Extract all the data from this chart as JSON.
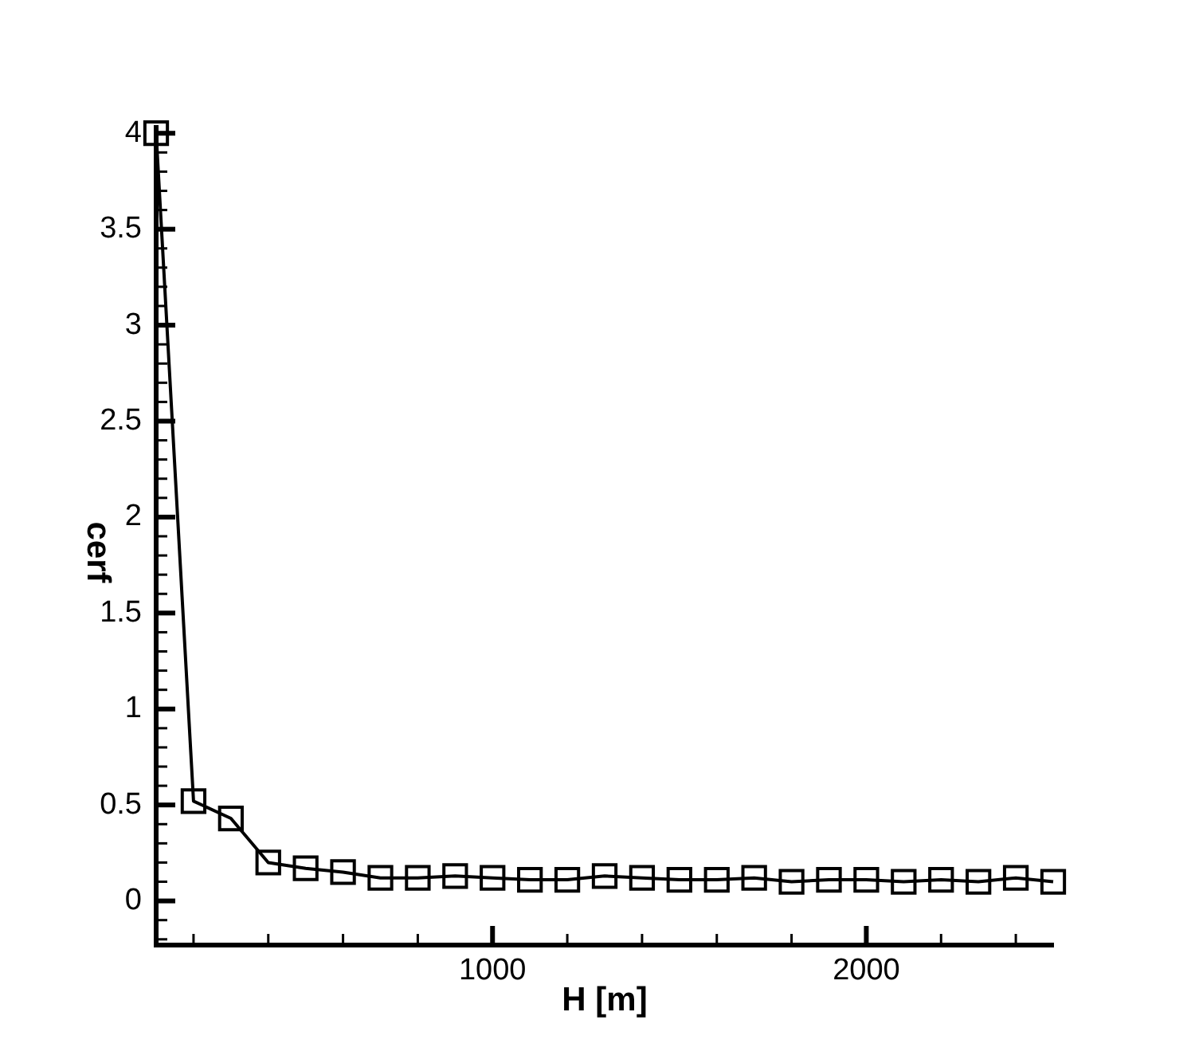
{
  "chart_data": {
    "type": "line",
    "xlabel": "H [m]",
    "ylabel": "cerf",
    "x": [
      100,
      200,
      300,
      400,
      500,
      600,
      700,
      800,
      900,
      1000,
      1100,
      1200,
      1300,
      1400,
      1500,
      1600,
      1700,
      1800,
      1900,
      2000,
      2100,
      2200,
      2300,
      2400,
      2500
    ],
    "values": [
      4.0,
      0.52,
      0.43,
      0.2,
      0.17,
      0.15,
      0.12,
      0.12,
      0.13,
      0.12,
      0.11,
      0.11,
      0.13,
      0.12,
      0.11,
      0.11,
      0.12,
      0.1,
      0.11,
      0.11,
      0.1,
      0.11,
      0.1,
      0.12,
      0.1
    ],
    "color": "#000000",
    "marker": "square",
    "line_style": "solid",
    "xlim": [
      100,
      2500
    ],
    "ylim": [
      -0.23,
      4.03
    ],
    "xticks": [
      {
        "value": 200,
        "label": null
      },
      {
        "value": 400,
        "label": null
      },
      {
        "value": 600,
        "label": null
      },
      {
        "value": 800,
        "label": null
      },
      1000,
      {
        "value": 1200,
        "label": null
      },
      {
        "value": 1400,
        "label": null
      },
      {
        "value": 1600,
        "label": null
      },
      {
        "value": 1800,
        "label": null
      },
      2000,
      {
        "value": 2200,
        "label": null
      },
      {
        "value": 2400,
        "label": null
      }
    ],
    "yticks": [
      {
        "value": -0.2,
        "label": null
      },
      {
        "value": -0.1,
        "label": null
      },
      0,
      {
        "value": 0.1,
        "label": null
      },
      {
        "value": 0.2,
        "label": null
      },
      {
        "value": 0.3,
        "label": null
      },
      {
        "value": 0.4,
        "label": null
      },
      0.5,
      {
        "value": 0.6,
        "label": null
      },
      {
        "value": 0.7,
        "label": null
      },
      {
        "value": 0.8,
        "label": null
      },
      {
        "value": 0.9,
        "label": null
      },
      1,
      {
        "value": 1.1,
        "label": null
      },
      {
        "value": 1.2,
        "label": null
      },
      {
        "value": 1.3,
        "label": null
      },
      {
        "value": 1.4,
        "label": null
      },
      1.5,
      {
        "value": 1.6,
        "label": null
      },
      {
        "value": 1.7,
        "label": null
      },
      {
        "value": 1.8,
        "label": null
      },
      {
        "value": 1.9,
        "label": null
      },
      2,
      {
        "value": 2.1,
        "label": null
      },
      {
        "value": 2.2,
        "label": null
      },
      {
        "value": 2.3,
        "label": null
      },
      {
        "value": 2.4,
        "label": null
      },
      2.5,
      {
        "value": 2.6,
        "label": null
      },
      {
        "value": 2.7,
        "label": null
      },
      {
        "value": 2.8,
        "label": null
      },
      {
        "value": 2.9,
        "label": null
      },
      3,
      {
        "value": 3.1,
        "label": null
      },
      {
        "value": 3.2,
        "label": null
      },
      {
        "value": 3.3,
        "label": null
      },
      {
        "value": 3.4,
        "label": null
      },
      3.5,
      {
        "value": 3.6,
        "label": null
      },
      {
        "value": 3.7,
        "label": null
      },
      {
        "value": 3.8,
        "label": null
      },
      {
        "value": 3.9,
        "label": null
      },
      4
    ]
  }
}
